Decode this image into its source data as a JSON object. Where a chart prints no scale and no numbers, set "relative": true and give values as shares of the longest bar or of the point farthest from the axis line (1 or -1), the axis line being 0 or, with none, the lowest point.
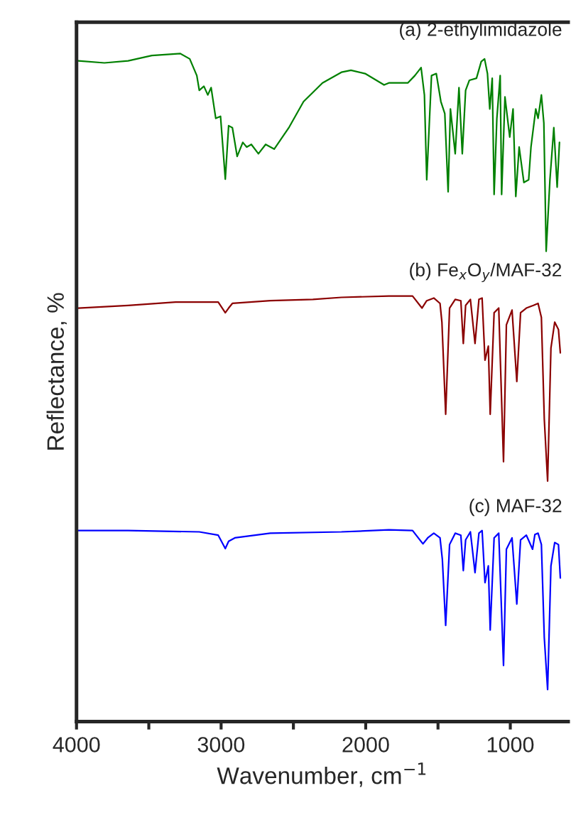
{
  "chart_data": {
    "type": "line",
    "relative": true,
    "xlabel": "Wavenumber, cm$^{−1}$",
    "ylabel": "Reflectance, %",
    "xlim": [
      4000,
      600
    ],
    "xticks": [
      4000,
      {
        "value": 3500,
        "label": null
      },
      3000,
      {
        "value": 2500,
        "label": null
      },
      2000,
      {
        "value": 1500,
        "label": null
      },
      1000
    ],
    "tick_labels": "x",
    "legend": false,
    "grid": false,
    "marker": "none",
    "line_style": "solid",
    "series": [
      {
        "name": "(a) 2-ethylimidazole",
        "color": "#008000",
        "x": [
          3987,
          3807,
          3643,
          3479,
          3282,
          3217,
          3168,
          3151,
          3119,
          3092,
          3069,
          3037,
          3004,
          2971,
          2948,
          2922,
          2889,
          2850,
          2823,
          2791,
          2742,
          2692,
          2633,
          2529,
          2430,
          2299,
          2168,
          2102,
          2004,
          1873,
          1840,
          1709,
          1660,
          1617,
          1594,
          1578,
          1545,
          1512,
          1480,
          1453,
          1430,
          1414,
          1381,
          1355,
          1332,
          1309,
          1283,
          1234,
          1201,
          1178,
          1158,
          1142,
          1125,
          1112,
          1093,
          1070,
          1060,
          1037,
          1004,
          981,
          962,
          939,
          906,
          873,
          857,
          824,
          808,
          785,
          768,
          752,
          726,
          699,
          676,
          660
        ],
        "values": [
          0.989,
          0.986,
          0.989,
          0.997,
          1,
          0.992,
          0.967,
          0.945,
          0.951,
          0.938,
          0.949,
          0.903,
          0.906,
          0.812,
          0.892,
          0.889,
          0.846,
          0.867,
          0.86,
          0.864,
          0.85,
          0.864,
          0.857,
          0.89,
          0.928,
          0.956,
          0.972,
          0.975,
          0.97,
          0.953,
          0.956,
          0.956,
          0.967,
          0.979,
          0.938,
          0.811,
          0.967,
          0.97,
          0.928,
          0.91,
          0.793,
          0.917,
          0.85,
          0.949,
          0.85,
          0.945,
          0.96,
          0.963,
          0.988,
          0.992,
          0.97,
          0.917,
          0.963,
          0.789,
          0.903,
          0.967,
          0.789,
          0.935,
          0.875,
          0.917,
          0.786,
          0.86,
          0.807,
          0.811,
          0.86,
          0.917,
          0.903,
          0.938,
          0.896,
          0.704,
          0.811,
          0.889,
          0.8,
          0.867
        ]
      },
      {
        "name": "(b) Fe$_{x}$O$_{y}$/MAF-32",
        "color": "#8b0000",
        "x": [
          3987,
          3643,
          3315,
          3020,
          2971,
          2948,
          2922,
          2660,
          2365,
          2168,
          1840,
          1676,
          1611,
          1578,
          1529,
          1486,
          1473,
          1447,
          1420,
          1381,
          1342,
          1325,
          1309,
          1276,
          1244,
          1217,
          1195,
          1175,
          1152,
          1139,
          1112,
          1080,
          1047,
          1027,
          988,
          955,
          929,
          889,
          840,
          808,
          785,
          765,
          742,
          719,
          693,
          667,
          654
        ],
        "values": [
          0.619,
          0.623,
          0.628,
          0.628,
          0.612,
          0.619,
          0.626,
          0.63,
          0.632,
          0.635,
          0.637,
          0.637,
          0.619,
          0.63,
          0.634,
          0.626,
          0.598,
          0.46,
          0.619,
          0.632,
          0.63,
          0.566,
          0.623,
          0.632,
          0.566,
          0.632,
          0.634,
          0.541,
          0.562,
          0.46,
          0.612,
          0.619,
          0.389,
          0.594,
          0.616,
          0.509,
          0.612,
          0.619,
          0.623,
          0.626,
          0.605,
          0.453,
          0.36,
          0.559,
          0.598,
          0.587,
          0.552
        ]
      },
      {
        "name": "(c) MAF-32",
        "color": "#0000ff",
        "x": [
          3987,
          3643,
          3151,
          3020,
          2971,
          2948,
          2905,
          2660,
          2168,
          1840,
          1676,
          1604,
          1571,
          1529,
          1486,
          1470,
          1447,
          1420,
          1381,
          1342,
          1325,
          1309,
          1276,
          1244,
          1217,
          1195,
          1175,
          1152,
          1139,
          1112,
          1080,
          1047,
          1027,
          988,
          955,
          929,
          889,
          846,
          830,
          808,
          785,
          765,
          742,
          719,
          693,
          667,
          654
        ],
        "values": [
          0.286,
          0.286,
          0.284,
          0.279,
          0.259,
          0.27,
          0.275,
          0.282,
          0.284,
          0.287,
          0.286,
          0.266,
          0.275,
          0.282,
          0.275,
          0.243,
          0.144,
          0.265,
          0.282,
          0.279,
          0.226,
          0.272,
          0.284,
          0.223,
          0.282,
          0.286,
          0.208,
          0.233,
          0.137,
          0.275,
          0.282,
          0.084,
          0.258,
          0.275,
          0.176,
          0.272,
          0.279,
          0.258,
          0.28,
          0.282,
          0.265,
          0.126,
          0.048,
          0.233,
          0.268,
          0.265,
          0.215
        ]
      }
    ]
  }
}
